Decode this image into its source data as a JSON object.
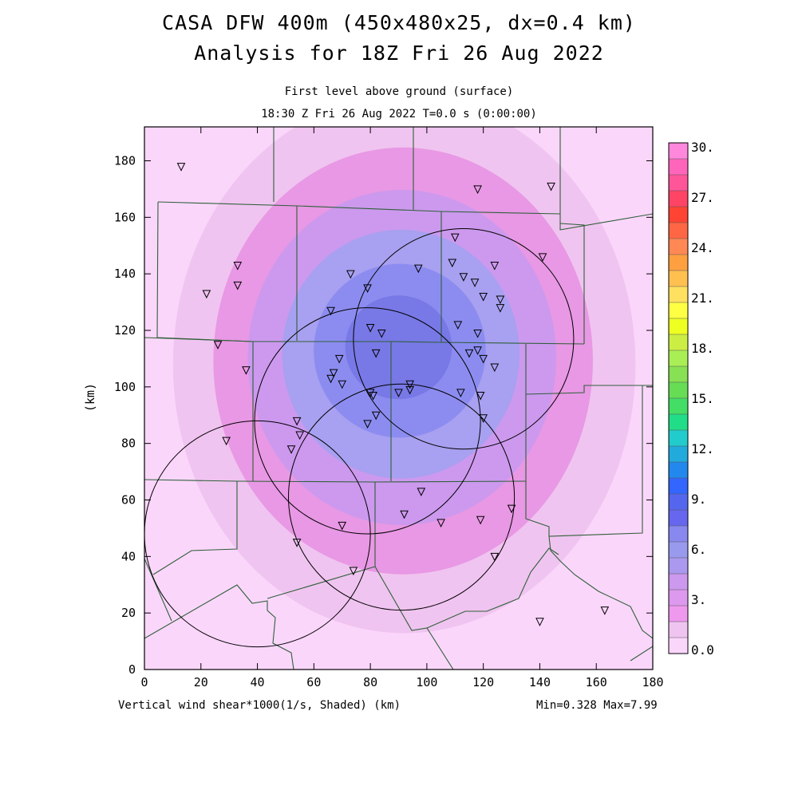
{
  "header": {
    "title_line1": "CASA DFW 400m (450x480x25, dx=0.4 km)",
    "title_line2": "Analysis for 18Z Fri 26 Aug 2022",
    "level": "First level above ground (surface)",
    "valid_time": "18:30 Z Fri 26 Aug 2022   T=0.0 s (0:00:00)"
  },
  "footer": {
    "field_label": "Vertical wind shear*1000(1/s, Shaded)  (km)",
    "min_max": "Min=0.328 Max=7.99"
  },
  "chart_data": {
    "type": "heatmap",
    "xlabel": "(km)",
    "ylabel": "(km)",
    "xlim": [
      0,
      180
    ],
    "ylim": [
      0,
      192
    ],
    "x_ticks": [
      0,
      20,
      40,
      60,
      80,
      100,
      120,
      140,
      160,
      180
    ],
    "y_ticks": [
      0,
      20,
      40,
      60,
      80,
      100,
      120,
      140,
      160,
      180
    ],
    "field_min": 0.328,
    "field_max": 7.99,
    "colorbar": {
      "labels": [
        "30.",
        "27.",
        "24.",
        "21.",
        "18.",
        "15.",
        "12.",
        "9.",
        "6.",
        "3.",
        "0.0"
      ],
      "colors": [
        "#ff88dd",
        "#ff66bb",
        "#ff5599",
        "#ff4466",
        "#ff4433",
        "#ff6644",
        "#ff8855",
        "#ffa040",
        "#ffc050",
        "#ffe060",
        "#ffff44",
        "#eeff22",
        "#ccee44",
        "#aaee55",
        "#88e055",
        "#66dd55",
        "#44dd66",
        "#22dd88",
        "#22cccc",
        "#22aadd",
        "#2288ee",
        "#3366ff",
        "#5566ee",
        "#6666ee",
        "#8888ee",
        "#9999ee",
        "#aa99ee",
        "#cc99ee",
        "#dd99ee",
        "#ee99ee",
        "#f0c4f0",
        "#fbd6fb"
      ]
    },
    "contours": [
      {
        "level": 1.0,
        "color": "#f0c4f0"
      },
      {
        "level": 2.0,
        "color": "#e898e4"
      },
      {
        "level": 3.0,
        "color": "#cc99ee"
      },
      {
        "level": 4.0,
        "color": "#a8a0f0"
      },
      {
        "level": 5.0,
        "color": "#8c8cf0"
      },
      {
        "level": 6.0,
        "color": "#7878e6"
      }
    ],
    "peak_location": [
      92,
      108
    ],
    "radar_range_rings": [
      {
        "center": [
          113,
          117
        ],
        "radius": 39
      },
      {
        "center": [
          79,
          88
        ],
        "radius": 40
      },
      {
        "center": [
          40,
          48
        ],
        "radius": 40
      },
      {
        "center": [
          91,
          61
        ],
        "radius": 40
      }
    ],
    "stations": [
      [
        13,
        178
      ],
      [
        33,
        143
      ],
      [
        33,
        136
      ],
      [
        22,
        133
      ],
      [
        26,
        115
      ],
      [
        36,
        106
      ],
      [
        29,
        81
      ],
      [
        54,
        88
      ],
      [
        55,
        83
      ],
      [
        52,
        78
      ],
      [
        54,
        45
      ],
      [
        70,
        51
      ],
      [
        74,
        35
      ],
      [
        73,
        140
      ],
      [
        66,
        127
      ],
      [
        79,
        135
      ],
      [
        80,
        121
      ],
      [
        84,
        119
      ],
      [
        82,
        112
      ],
      [
        69,
        110
      ],
      [
        67,
        105
      ],
      [
        66,
        103
      ],
      [
        70,
        101
      ],
      [
        80,
        98
      ],
      [
        81,
        97
      ],
      [
        79,
        87
      ],
      [
        82,
        90
      ],
      [
        90,
        98
      ],
      [
        94,
        101
      ],
      [
        94,
        99
      ],
      [
        97,
        142
      ],
      [
        110,
        153
      ],
      [
        109,
        144
      ],
      [
        113,
        139
      ],
      [
        117,
        137
      ],
      [
        124,
        143
      ],
      [
        120,
        132
      ],
      [
        126,
        131
      ],
      [
        126,
        128
      ],
      [
        111,
        122
      ],
      [
        118,
        119
      ],
      [
        115,
        112
      ],
      [
        118,
        113
      ],
      [
        120,
        110
      ],
      [
        124,
        107
      ],
      [
        112,
        98
      ],
      [
        119,
        97
      ],
      [
        120,
        89
      ],
      [
        118,
        170
      ],
      [
        144,
        171
      ],
      [
        141,
        146
      ],
      [
        98,
        63
      ],
      [
        92,
        55
      ],
      [
        105,
        52
      ],
      [
        119,
        53
      ],
      [
        130,
        57
      ],
      [
        124,
        40
      ],
      [
        140,
        17
      ],
      [
        163,
        21
      ]
    ]
  }
}
